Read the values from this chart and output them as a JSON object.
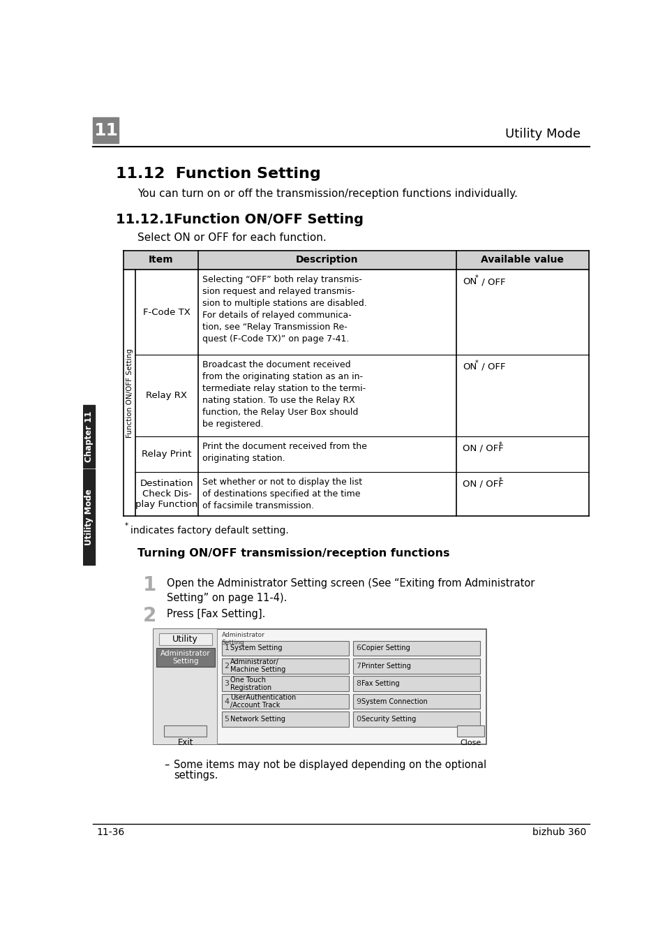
{
  "page_bg": "#ffffff",
  "header_bar_color": "#808080",
  "header_text": "Utility Mode",
  "header_num": "11",
  "section_title": "11.12  Function Setting",
  "section_intro": "You can turn on or off the transmission/reception functions individually.",
  "subsection_title": "11.12.1Function ON/OFF Setting",
  "subsection_intro": "Select ON or OFF for each function.",
  "table_header_bg": "#d0d0d0",
  "table_col_headers": [
    "Item",
    "Description",
    "Available value"
  ],
  "rotated_label": "Function ON/OFF Setting",
  "table_rows": [
    {
      "item": "F-Code TX",
      "description": "Selecting “OFF” both relay transmis-\nsion request and relayed transmis-\nsion to multiple stations are disabled.\nFor details of relayed communica-\ntion, see “Relay Transmission Re-\nquest (F-Code TX)” on page 7-41.",
      "available": "ON* / OFF"
    },
    {
      "item": "Relay RX",
      "description": "Broadcast the document received\nfrom the originating station as an in-\ntermediate relay station to the termi-\nnating station. To use the Relay RX\nfunction, the Relay User Box should\nbe registered.",
      "available": "ON* / OFF"
    },
    {
      "item": "Relay Print",
      "description": "Print the document received from the\noriginating station.",
      "available": "ON / OFF*"
    },
    {
      "item": "Destination\nCheck Dis-\nplay Function",
      "description": "Set whether or not to display the list\nof destinations specified at the time\nof facsimile transmission.",
      "available": "ON / OFF*"
    }
  ],
  "footnote_star": "*",
  "footnote_text": "indicates factory default setting.",
  "bold_heading": "Turning ON/OFF transmission/reception functions",
  "step1_num": "1",
  "step1_text": "Open the Administrator Setting screen (See “Exiting from Administrator\nSetting” on page 11-4).",
  "step2_num": "2",
  "step2_text": "Press [Fax Setting].",
  "left_tab_chapter": "Chapter 11",
  "left_tab_utility": "Utility Mode",
  "footer_left": "11-36",
  "footer_right": "bizhub 360",
  "buttons_left": [
    [
      "1",
      "System Setting"
    ],
    [
      "2",
      "Administrator/\nMachine Setting"
    ],
    [
      "3",
      "One Touch\nRegistration"
    ],
    [
      "4",
      "UserAuthentication\n/Account Track"
    ],
    [
      "5",
      "Network Setting"
    ]
  ],
  "buttons_right": [
    [
      "6",
      "Copier Setting"
    ],
    [
      "7",
      "Printer Setting"
    ],
    [
      "8",
      "Fax Setting"
    ],
    [
      "9",
      "System Connection"
    ],
    [
      "0",
      "Security Setting"
    ]
  ]
}
